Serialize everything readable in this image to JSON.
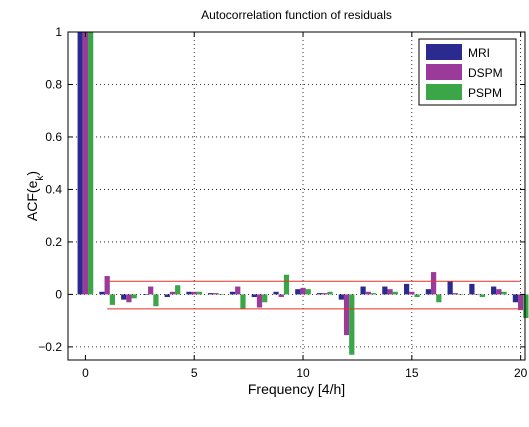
{
  "chart_data": {
    "type": "bar",
    "title": "Autocorrelation function of residuals",
    "xlabel": "Frequency [4/h]",
    "ylabel_main": "ACF(e",
    "ylabel_sub": "k",
    "ylabel_close": ")",
    "xlim": [
      -0.8,
      20.2
    ],
    "ylim": [
      -0.25,
      1.0
    ],
    "xticks": [
      0,
      5,
      10,
      15,
      20
    ],
    "yticks": [
      -0.2,
      0,
      0.2,
      0.4,
      0.6,
      0.8,
      1
    ],
    "ytick_labels": [
      "−0.2",
      "0",
      "0.2",
      "0.4",
      "0.6",
      "0.8",
      "1"
    ],
    "grid": true,
    "legend_position": "top-right",
    "x": [
      0,
      1,
      2,
      3,
      4,
      5,
      6,
      7,
      8,
      9,
      10,
      11,
      12,
      13,
      14,
      15,
      16,
      17,
      18,
      19,
      20
    ],
    "series": [
      {
        "name": "MRI",
        "color": "#2b2b8f",
        "values": [
          1.0,
          0.01,
          -0.02,
          0.0,
          -0.01,
          0.01,
          0.005,
          0.01,
          -0.01,
          0.01,
          0.02,
          0.005,
          -0.02,
          0.03,
          0.03,
          0.04,
          0.02,
          0.05,
          0.04,
          0.03,
          -0.03
        ]
      },
      {
        "name": "DSPM",
        "color": "#9b3a9b",
        "values": [
          1.0,
          0.07,
          -0.03,
          0.03,
          0.01,
          0.01,
          0.005,
          0.03,
          -0.05,
          -0.01,
          0.025,
          0.005,
          -0.155,
          0.01,
          0.02,
          0.01,
          0.085,
          0.005,
          0.0,
          0.02,
          -0.06
        ]
      },
      {
        "name": "PSPM",
        "color": "#3aa648",
        "values": [
          1.0,
          -0.04,
          -0.015,
          -0.045,
          0.035,
          0.01,
          0.0,
          -0.055,
          -0.03,
          0.075,
          0.02,
          0.01,
          -0.23,
          0.005,
          0.01,
          -0.01,
          -0.03,
          0.0,
          -0.01,
          0.01,
          -0.09
        ]
      }
    ],
    "confidence_bounds": [
      0.05,
      -0.055
    ]
  }
}
